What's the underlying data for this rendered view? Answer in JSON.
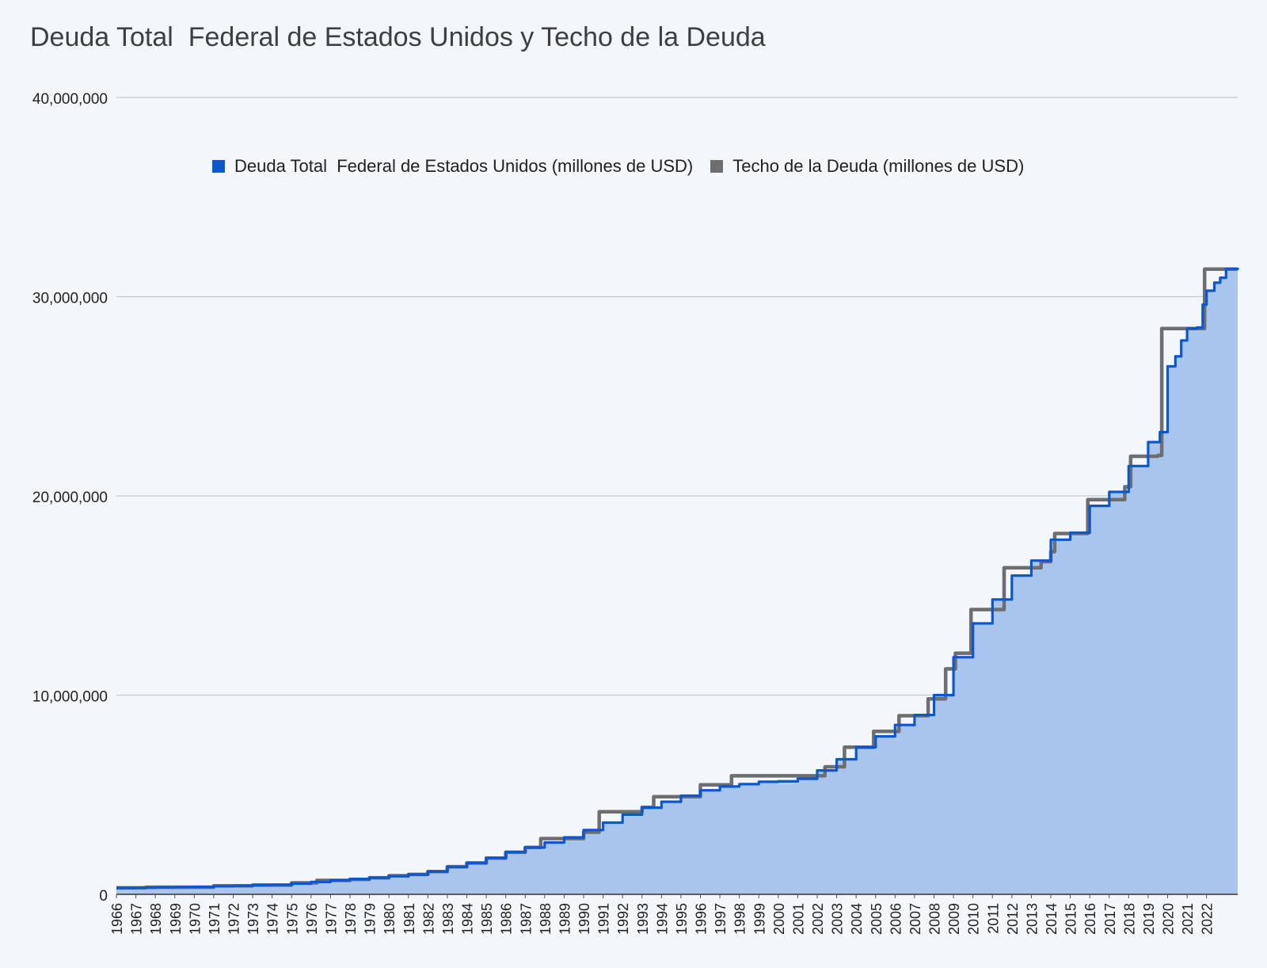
{
  "chart_data": {
    "type": "area",
    "title": "Deuda Total  Federal de Estados Unidos y Techo de la Deuda",
    "xlabel": "",
    "ylabel": "",
    "ylim": [
      0,
      40000000
    ],
    "yticks": [
      "0",
      "10,000,000",
      "20,000,000",
      "30,000,000",
      "40,000,000"
    ],
    "ytick_values": [
      0,
      10000000,
      20000000,
      30000000,
      40000000
    ],
    "xlim": [
      1966,
      2023.6
    ],
    "categories": [
      "1966",
      "1967",
      "1968",
      "1969",
      "1970",
      "1971",
      "1972",
      "1973",
      "1974",
      "1975",
      "1976",
      "1977",
      "1978",
      "1979",
      "1980",
      "1981",
      "1982",
      "1983",
      "1984",
      "1985",
      "1986",
      "1987",
      "1988",
      "1989",
      "1990",
      "1991",
      "1992",
      "1993",
      "1994",
      "1995",
      "1996",
      "1997",
      "1998",
      "1999",
      "2000",
      "2001",
      "2002",
      "2003",
      "2004",
      "2005",
      "2006",
      "2007",
      "2008",
      "2009",
      "2010",
      "2011",
      "2012",
      "2013",
      "2014",
      "2015",
      "2016",
      "2017",
      "2018",
      "2019",
      "2020",
      "2021",
      "2022"
    ],
    "legend_position": "top",
    "grid": true,
    "series": [
      {
        "name": "Deuda Total  Federal de Estados Unidos (millones de USD)",
        "color": "#0b57d0",
        "fill": "#a8c5ed",
        "style": "stepped-area",
        "points": [
          [
            1966.0,
            320000
          ],
          [
            1967.0,
            330000
          ],
          [
            1968.0,
            355000
          ],
          [
            1969.0,
            365000
          ],
          [
            1970.0,
            375000
          ],
          [
            1971.0,
            405000
          ],
          [
            1972.0,
            430000
          ],
          [
            1973.0,
            455000
          ],
          [
            1974.0,
            475000
          ],
          [
            1975.0,
            535000
          ],
          [
            1976.0,
            620000
          ],
          [
            1977.0,
            700000
          ],
          [
            1978.0,
            770000
          ],
          [
            1979.0,
            830000
          ],
          [
            1980.0,
            905000
          ],
          [
            1981.0,
            995000
          ],
          [
            1982.0,
            1140000
          ],
          [
            1983.0,
            1370000
          ],
          [
            1984.0,
            1570000
          ],
          [
            1985.0,
            1820000
          ],
          [
            1986.0,
            2120000
          ],
          [
            1987.0,
            2350000
          ],
          [
            1988.0,
            2600000
          ],
          [
            1989.0,
            2860000
          ],
          [
            1990.0,
            3230000
          ],
          [
            1991.0,
            3600000
          ],
          [
            1992.0,
            4000000
          ],
          [
            1993.0,
            4350000
          ],
          [
            1994.0,
            4650000
          ],
          [
            1995.0,
            4950000
          ],
          [
            1996.0,
            5220000
          ],
          [
            1997.0,
            5410000
          ],
          [
            1998.0,
            5530000
          ],
          [
            1999.0,
            5650000
          ],
          [
            2000.0,
            5670000
          ],
          [
            2001.0,
            5800000
          ],
          [
            2002.0,
            6220000
          ],
          [
            2003.0,
            6780000
          ],
          [
            2004.0,
            7380000
          ],
          [
            2005.0,
            7930000
          ],
          [
            2006.0,
            8500000
          ],
          [
            2007.0,
            9000000
          ],
          [
            2008.0,
            10000000
          ],
          [
            2009.0,
            11900000
          ],
          [
            2010.0,
            13600000
          ],
          [
            2011.0,
            14800000
          ],
          [
            2012.0,
            16000000
          ],
          [
            2013.0,
            16750000
          ],
          [
            2014.0,
            17800000
          ],
          [
            2015.0,
            18150000
          ],
          [
            2016.0,
            19500000
          ],
          [
            2017.0,
            20200000
          ],
          [
            2018.0,
            21500000
          ],
          [
            2019.0,
            22700000
          ],
          [
            2019.6,
            23200000
          ],
          [
            2020.0,
            26500000
          ],
          [
            2020.4,
            27000000
          ],
          [
            2020.7,
            27800000
          ],
          [
            2021.0,
            28400000
          ],
          [
            2021.5,
            28450000
          ],
          [
            2021.8,
            29600000
          ],
          [
            2022.0,
            30300000
          ],
          [
            2022.4,
            30700000
          ],
          [
            2022.7,
            30950000
          ],
          [
            2023.0,
            31400000
          ],
          [
            2023.6,
            31450000
          ]
        ]
      },
      {
        "name": "Techo de la Deuda (millones de USD)",
        "color": "#6e6e6e",
        "style": "step-line",
        "points": [
          [
            1966.0,
            328000
          ],
          [
            1967.5,
            358000
          ],
          [
            1971.0,
            430000
          ],
          [
            1973.0,
            465000
          ],
          [
            1975.0,
            577000
          ],
          [
            1976.3,
            700000
          ],
          [
            1978.0,
            752000
          ],
          [
            1979.0,
            830000
          ],
          [
            1980.0,
            935000
          ],
          [
            1981.0,
            999800
          ],
          [
            1982.0,
            1143100
          ],
          [
            1983.0,
            1389000
          ],
          [
            1984.0,
            1573000
          ],
          [
            1985.0,
            1823000
          ],
          [
            1986.0,
            2111000
          ],
          [
            1987.0,
            2352000
          ],
          [
            1987.8,
            2800000
          ],
          [
            1990.0,
            3122700
          ],
          [
            1990.8,
            4145000
          ],
          [
            1993.0,
            4370000
          ],
          [
            1993.6,
            4900000
          ],
          [
            1996.0,
            5500000
          ],
          [
            1997.6,
            5950000
          ],
          [
            2002.4,
            6400000
          ],
          [
            2003.4,
            7384000
          ],
          [
            2004.9,
            8184000
          ],
          [
            2006.2,
            8965000
          ],
          [
            2007.7,
            9815000
          ],
          [
            2008.6,
            11315000
          ],
          [
            2009.1,
            12104000
          ],
          [
            2009.9,
            14294000
          ],
          [
            2011.6,
            16394000
          ],
          [
            2013.5,
            16700000
          ],
          [
            2014.0,
            17200000
          ],
          [
            2014.2,
            18113000
          ],
          [
            2015.9,
            19808772
          ],
          [
            2017.8,
            20456000
          ],
          [
            2018.1,
            21988000
          ],
          [
            2019.5,
            22030000
          ],
          [
            2019.7,
            28400000
          ],
          [
            2021.9,
            31381000
          ],
          [
            2023.6,
            31381000
          ]
        ]
      }
    ]
  }
}
